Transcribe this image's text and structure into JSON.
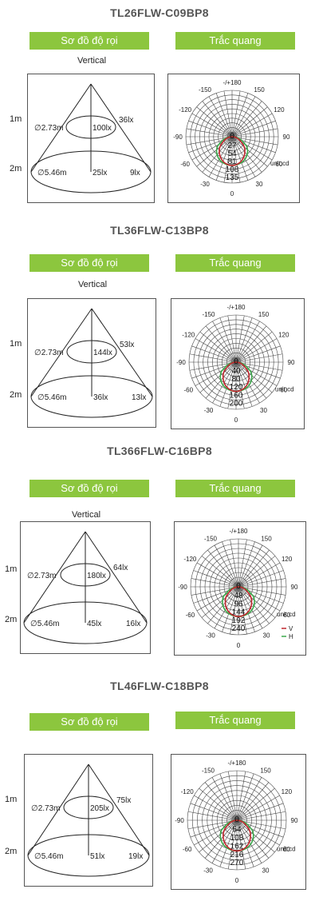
{
  "sections": [
    {
      "product": "TL26FLW-C09BP8",
      "tab_cone": "Sơ đồ độ rọi",
      "tab_polar": "Trắc quang",
      "vertical_label": "Vertical",
      "cone": {
        "dist1": "1m",
        "dist2": "2m",
        "d1": "∅2.73m",
        "c1": "100lx",
        "e1": "36lx",
        "d2": "∅5.46m",
        "c2": "25lx",
        "e2": "9lx"
      },
      "polar": {
        "top": "-/+180",
        "left_150": "-150",
        "right_150": "150",
        "left_120": "-120",
        "right_120": "120",
        "left_90": "-90",
        "right_90": "90",
        "left_60": "-60",
        "right_60": "60",
        "left_30": "-30",
        "right_30": "30",
        "bottom": "0",
        "unit": "unit:cd",
        "rings": [
          "0",
          "27",
          "54",
          "81",
          "108",
          "135"
        ]
      }
    },
    {
      "product": "TL36FLW-C13BP8",
      "tab_cone": "Sơ đồ độ rọi",
      "tab_polar": "Trắc quang",
      "vertical_label": "Vertical",
      "cone": {
        "dist1": "1m",
        "dist2": "2m",
        "d1": "∅2.73m",
        "c1": "144lx",
        "e1": "53lx",
        "d2": "∅5.46m",
        "c2": "36lx",
        "e2": "13lx"
      },
      "polar": {
        "top": "-/+180",
        "left_150": "-150",
        "right_150": "150",
        "left_120": "-120",
        "right_120": "120",
        "left_90": "-90",
        "right_90": "90",
        "left_60": "-60",
        "right_60": "60",
        "left_30": "-30",
        "right_30": "30",
        "bottom": "0",
        "unit": "unit:cd",
        "rings": [
          "0",
          "40",
          "80",
          "120",
          "160",
          "200"
        ]
      }
    },
    {
      "product": "TL366FLW-C16BP8",
      "tab_cone": "Sơ đồ độ rọi",
      "tab_polar": "Trắc quang",
      "vertical_label": "Vertical",
      "cone": {
        "dist1": "1m",
        "dist2": "2m",
        "d1": "∅2.73m",
        "c1": "180lx",
        "e1": "64lx",
        "d2": "∅5.46m",
        "c2": "45lx",
        "e2": "16lx"
      },
      "polar": {
        "top": "-/+180",
        "left_150": "-150",
        "right_150": "150",
        "left_120": "-120",
        "right_120": "120",
        "left_90": "-90",
        "right_90": "90",
        "left_60": "-60",
        "right_60": "60",
        "left_30": "-30",
        "right_30": "30",
        "bottom": "0",
        "unit": "unit:cd",
        "rings": [
          "0",
          "48",
          "96",
          "144",
          "192",
          "240"
        ],
        "legend_v": "V",
        "legend_h": "H"
      }
    },
    {
      "product": "TL46FLW-C18BP8",
      "tab_cone": "Sơ đồ độ rọi",
      "tab_polar": "Trắc quang",
      "vertical_label": "",
      "cone": {
        "dist1": "1m",
        "dist2": "2m",
        "d1": "∅2.73m",
        "c1": "205lx",
        "e1": "75lx",
        "d2": "∅5.46m",
        "c2": "51lx",
        "e2": "19lx"
      },
      "polar": {
        "top": "-/+180",
        "left_150": "-150",
        "right_150": "150",
        "left_120": "-120",
        "right_120": "120",
        "left_90": "-90",
        "right_90": "90",
        "left_60": "-60",
        "right_60": "60",
        "left_30": "-30",
        "right_30": "30",
        "bottom": "0",
        "unit": "unit:cd",
        "rings": [
          "0",
          "54",
          "108",
          "162",
          "216",
          "270"
        ]
      }
    }
  ],
  "colors": {
    "tab_green": "#8cc63e",
    "curve_v": "#c0262d",
    "curve_h": "#3aa84a"
  }
}
